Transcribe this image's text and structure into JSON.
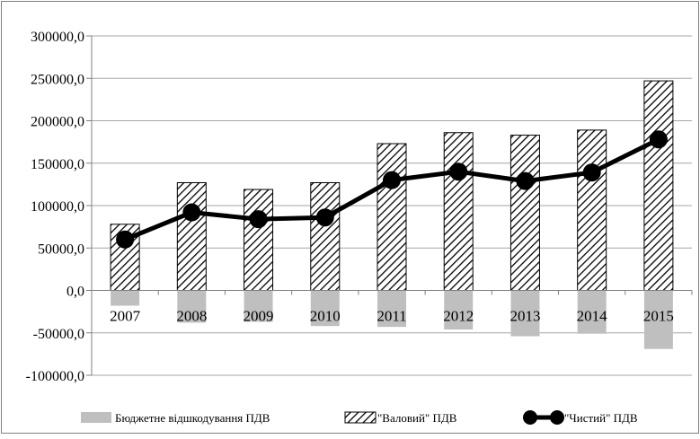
{
  "chart_data": {
    "type": "bar",
    "categories": [
      "2007",
      "2008",
      "2009",
      "2010",
      "2011",
      "2012",
      "2013",
      "2014",
      "2015"
    ],
    "series": [
      {
        "name": "Бюджетне відшкодування ПДВ",
        "kind": "bar",
        "fill": "solid-gray",
        "color": "#bfbfbf",
        "values": [
          -18000,
          -38000,
          -37000,
          -42000,
          -43000,
          -46000,
          -54000,
          -51000,
          -69000
        ]
      },
      {
        "name": "\"Валовий\" ПДВ",
        "kind": "bar",
        "fill": "diagonal-hatch",
        "color": "#000000",
        "values": [
          78000,
          127000,
          119000,
          127000,
          173000,
          186000,
          183000,
          189000,
          247000
        ]
      },
      {
        "name": "\"Чистий\" ПДВ",
        "kind": "line",
        "marker": "circle",
        "color": "#000000",
        "values": [
          60000,
          92000,
          84000,
          86000,
          130000,
          140000,
          129000,
          139000,
          178000
        ]
      }
    ],
    "y_ticks": [
      "300000,0",
      "250000,0",
      "200000,0",
      "150000,0",
      "100000,0",
      "50000,0",
      "0,0",
      "-50000,0",
      "-100000,0"
    ],
    "y_tick_values": [
      300000,
      250000,
      200000,
      150000,
      100000,
      50000,
      0,
      -50000,
      -100000
    ],
    "ylim": [
      -100000,
      300000
    ],
    "grid": true,
    "legend_position": "bottom"
  }
}
